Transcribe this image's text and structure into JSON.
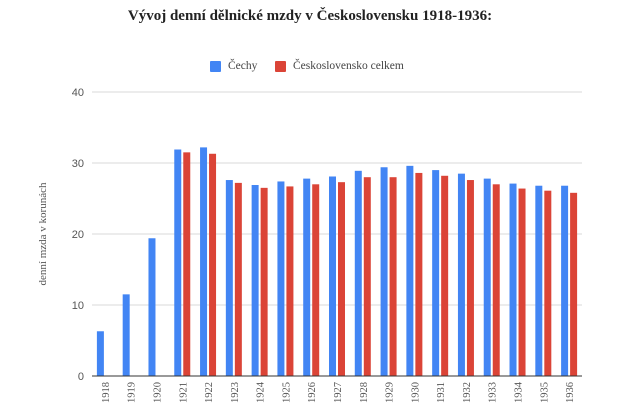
{
  "chart_data": {
    "type": "bar",
    "title": "Vývoj denní dělnické mzdy v Československu 1918-1936:",
    "xlabel": "",
    "ylabel": "denní mzda v korunách",
    "ylim": [
      0,
      40
    ],
    "yticks": [
      0,
      10,
      20,
      30,
      40
    ],
    "grid": true,
    "legend_position": "top",
    "categories": [
      "1918",
      "1919",
      "1920",
      "1921",
      "1922",
      "1923",
      "1924",
      "1925",
      "1926",
      "1927",
      "1928",
      "1929",
      "1930",
      "1931",
      "1932",
      "1933",
      "1934",
      "1935",
      "1936"
    ],
    "series": [
      {
        "name": "Čechy",
        "color": "#4285f4",
        "values": [
          6.3,
          11.5,
          19.4,
          31.9,
          32.2,
          27.6,
          26.9,
          27.4,
          27.8,
          28.1,
          28.9,
          29.4,
          29.6,
          29.0,
          28.5,
          27.8,
          27.1,
          26.8,
          26.8
        ]
      },
      {
        "name": "Československo celkem",
        "color": "#db4437",
        "values": [
          null,
          null,
          null,
          31.5,
          31.3,
          27.2,
          26.5,
          26.7,
          27.0,
          27.3,
          28.0,
          28.0,
          28.6,
          28.2,
          27.6,
          27.0,
          26.4,
          26.1,
          25.8
        ]
      }
    ]
  }
}
